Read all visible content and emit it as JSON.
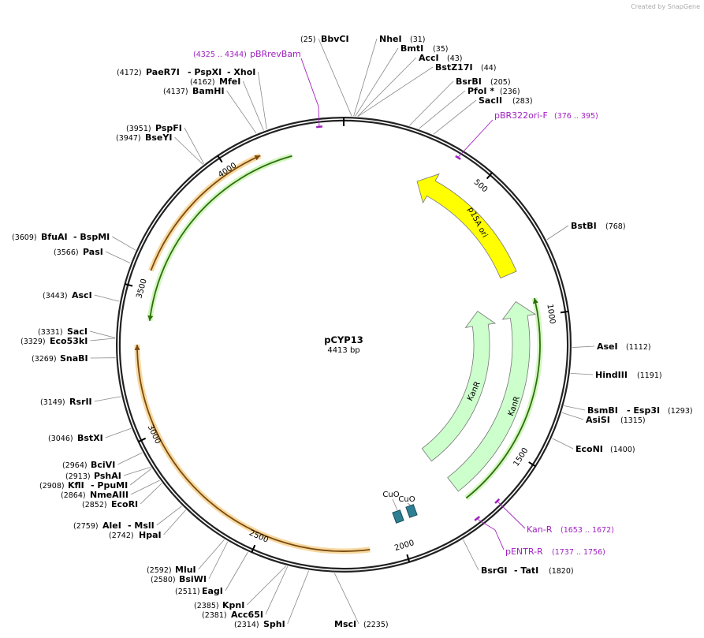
{
  "watermark": "Created by SnapGene",
  "map": {
    "name": "pCYP13",
    "length": "4413 bp"
  },
  "enzymes": [
    {
      "names": [
        "BbvCI"
      ],
      "site": "(25)"
    },
    {
      "names": [
        "NheI"
      ],
      "site": "(31)"
    },
    {
      "names": [
        "BmtI"
      ],
      "site": "(35)"
    },
    {
      "names": [
        "AccI"
      ],
      "site": "(43)"
    },
    {
      "names": [
        "BstZ17I"
      ],
      "site": "(44)"
    },
    {
      "names": [
        "BsrBI"
      ],
      "site": "(205)"
    },
    {
      "names": [
        "PfoI *"
      ],
      "site": "(236)"
    },
    {
      "names": [
        "SacII"
      ],
      "site": "(283)"
    },
    {
      "names": [
        "BstBI"
      ],
      "site": "(768)"
    },
    {
      "names": [
        "AseI"
      ],
      "site": "(1112)"
    },
    {
      "names": [
        "HindIII"
      ],
      "site": "(1191)"
    },
    {
      "names": [
        "BsmBI",
        "- Esp3I"
      ],
      "site": "(1293)"
    },
    {
      "names": [
        "AsiSI"
      ],
      "site": "(1315)"
    },
    {
      "names": [
        "EcoNI"
      ],
      "site": "(1400)"
    },
    {
      "names": [
        "BsrGI",
        "- TatI"
      ],
      "site": "(1820)"
    },
    {
      "names": [
        "MscI"
      ],
      "site": "(2235)"
    },
    {
      "names": [
        "SphI"
      ],
      "site": "(2314)"
    },
    {
      "names": [
        "Acc65I"
      ],
      "site": "(2381)"
    },
    {
      "names": [
        "KpnI"
      ],
      "site": "(2385)"
    },
    {
      "names": [
        "EagI"
      ],
      "site": "(2511)"
    },
    {
      "names": [
        "BsiWI"
      ],
      "site": "(2580)"
    },
    {
      "names": [
        "MluI"
      ],
      "site": "(2592)"
    },
    {
      "names": [
        "HpaI"
      ],
      "site": "(2742)"
    },
    {
      "names": [
        "AleI",
        "- MslI"
      ],
      "site": "(2759)"
    },
    {
      "names": [
        "EcoRI"
      ],
      "site": "(2852)"
    },
    {
      "names": [
        "NmeAIII"
      ],
      "site": "(2864)"
    },
    {
      "names": [
        "KflI",
        "- PpuMI"
      ],
      "site": "(2908)"
    },
    {
      "names": [
        "PshAI"
      ],
      "site": "(2913)"
    },
    {
      "names": [
        "BciVI"
      ],
      "site": "(2964)"
    },
    {
      "names": [
        "BstXI"
      ],
      "site": "(3046)"
    },
    {
      "names": [
        "RsrII"
      ],
      "site": "(3149)"
    },
    {
      "names": [
        "SnaBI"
      ],
      "site": "(3269)"
    },
    {
      "names": [
        "Eco53kI"
      ],
      "site": "(3329)"
    },
    {
      "names": [
        "SacI"
      ],
      "site": "(3331)"
    },
    {
      "names": [
        "AscI"
      ],
      "site": "(3443)"
    },
    {
      "names": [
        "PasI"
      ],
      "site": "(3566)"
    },
    {
      "names": [
        "BfuAI",
        "- BspMI"
      ],
      "site": "(3609)"
    },
    {
      "names": [
        "BseYI"
      ],
      "site": "(3947)"
    },
    {
      "names": [
        "PspFI"
      ],
      "site": "(3951)"
    },
    {
      "names": [
        "BamHI"
      ],
      "site": "(4137)"
    },
    {
      "names": [
        "MfeI"
      ],
      "site": "(4162)"
    },
    {
      "names": [
        "PaeR7I",
        "- PspXI",
        "- XhoI"
      ],
      "site": "(4172)"
    }
  ],
  "primers": [
    {
      "name": "pBRrevBam",
      "range": "(4325 .. 4344)"
    },
    {
      "name": "pBR322ori-F",
      "range": "(376 .. 395)"
    },
    {
      "name": "Kan-R",
      "range": "(1653 .. 1672)"
    },
    {
      "name": "pENTR-R",
      "range": "(1737 .. 1756)"
    }
  ],
  "features": [
    {
      "label": "p15A ori"
    },
    {
      "label": "KanR"
    },
    {
      "label": "KanR"
    },
    {
      "label": "CuO"
    },
    {
      "label": "CuO"
    }
  ],
  "ticks": [
    "500",
    "1000",
    "1500",
    "2000",
    "2500",
    "3000",
    "3500",
    "4000"
  ]
}
